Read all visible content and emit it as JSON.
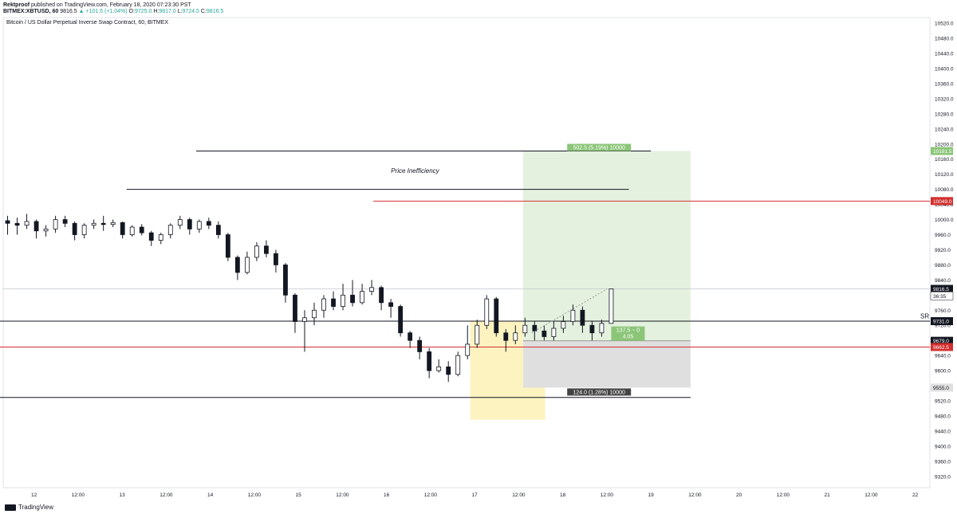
{
  "header": {
    "author": "Rektproof",
    "published": "published on TradingView.com, February 18, 2020 07:23:30 PST",
    "symbol": "BITMEX:XBTUSD, 60",
    "last": "9816.5",
    "change": "▲ +101.5 (+1.04%)",
    "o_label": "O:",
    "o": "9725.0",
    "h_label": "H:",
    "h": "9817.0",
    "l_label": "L:",
    "l": "9724.5",
    "c_label": "C:",
    "c": "9816.5"
  },
  "chart_title": "Bitcoin / US Dollar Perpetual Inverse Swap Contract, 60, BITMEX",
  "footer": {
    "brand": "TradingView"
  },
  "colors": {
    "up": "#131722",
    "down": "#131722",
    "accent_red": "#d32f2f",
    "profit": "#e5f1df",
    "loss": "#dfdfdf",
    "zone": "#fcf3c0",
    "profit_label": "#8bc578",
    "loss_label": "#444444"
  },
  "chart_data": {
    "type": "candlestick",
    "timeframe": "60",
    "ylim": [
      9290,
      10535
    ],
    "yticks": [
      "10520.0",
      "10480.0",
      "10440.0",
      "10400.0",
      "10360.0",
      "10320.0",
      "10280.0",
      "10240.0",
      "10200.0",
      "10160.0",
      "10120.0",
      "10080.0",
      "10040.0",
      "10000.0",
      "9960.0",
      "9920.0",
      "9880.0",
      "9840.0",
      "9800.0",
      "9760.0",
      "9720.0",
      "9680.0",
      "9640.0",
      "9600.0",
      "9560.0",
      "9520.0",
      "9480.0",
      "9440.0",
      "9400.0",
      "9360.0",
      "9320.0"
    ],
    "xticks": [
      "12",
      "12:00",
      "13",
      "12:00",
      "14",
      "12:00",
      "15",
      "12:00",
      "16",
      "12:00",
      "17",
      "12:00",
      "18",
      "12:00",
      "19",
      "12:00",
      "20",
      "12:00",
      "21",
      "12:00",
      "22"
    ],
    "price_labels": [
      {
        "text": "10181.5",
        "value": 10181.5,
        "style": "green"
      },
      {
        "text": "10049.0",
        "value": 10049.0,
        "style": "red"
      },
      {
        "text": "9816.5",
        "value": 9816.5,
        "style": "dark"
      },
      {
        "text": "36:35",
        "value": 9798,
        "style": "light"
      },
      {
        "text": "9731.0",
        "value": 9731.0,
        "style": "dark"
      },
      {
        "text": "9679.0",
        "value": 9679.0,
        "style": "dark"
      },
      {
        "text": "9662.5",
        "value": 9662.5,
        "style": "red"
      },
      {
        "text": "9555.0",
        "value": 9555.0,
        "style": "gray"
      }
    ],
    "annotations": {
      "price_inefficiency": "Price Inefficiency",
      "sr": "SR",
      "target": "502.5 (5.19%) 10000",
      "stop": "124.0 (1.28%) 10000",
      "ratio_line1": "137.5 ~ 0",
      "ratio_line2": "4.05"
    },
    "levels": [
      {
        "value": 10181.5,
        "from": 13.84,
        "to": 19.0,
        "color": "black"
      },
      {
        "value": 10080.0,
        "from": 13.05,
        "to": 18.75,
        "color": "black"
      },
      {
        "value": 10049.0,
        "from": 15.85,
        "to": 22.6,
        "color": "red"
      },
      {
        "value": 9731.0,
        "from": 11.25,
        "to": 22.6,
        "color": "black"
      },
      {
        "value": 9662.5,
        "from": 11.25,
        "to": 22.6,
        "color": "red"
      },
      {
        "value": 9529.0,
        "from": 11.25,
        "to": 19.45,
        "color": "black"
      }
    ],
    "position": {
      "entry": 9679.0,
      "target": 10181.5,
      "stop": 9555.0,
      "from": 17.55,
      "to": 19.45
    },
    "zone": {
      "top": 9731.0,
      "bottom": 9470.0,
      "from": 16.95,
      "to": 17.8
    },
    "candles": [
      [
        9997,
        9990,
        10010,
        9960
      ],
      [
        9990,
        9985,
        10005,
        9960
      ],
      [
        9985,
        9995,
        10015,
        9975
      ],
      [
        9995,
        9970,
        10000,
        9950
      ],
      [
        9970,
        9975,
        9985,
        9955
      ],
      [
        9975,
        10000,
        10010,
        9965
      ],
      [
        10000,
        9990,
        10010,
        9980
      ],
      [
        9990,
        9960,
        9995,
        9945
      ],
      [
        9960,
        9985,
        9990,
        9950
      ],
      [
        9985,
        9990,
        10000,
        9975
      ],
      [
        9990,
        9987,
        10010,
        9970
      ],
      [
        9987,
        9992,
        10000,
        9980
      ],
      [
        9992,
        9960,
        9995,
        9950
      ],
      [
        9960,
        9980,
        9985,
        9955
      ],
      [
        9980,
        9965,
        9988,
        9958
      ],
      [
        9965,
        9945,
        9970,
        9930
      ],
      [
        9945,
        9960,
        9965,
        9935
      ],
      [
        9960,
        9985,
        9990,
        9950
      ],
      [
        9985,
        10000,
        10010,
        9975
      ],
      [
        10000,
        9975,
        10005,
        9960
      ],
      [
        9975,
        9995,
        10000,
        9965
      ],
      [
        9995,
        9985,
        10005,
        9975
      ],
      [
        9985,
        9960,
        9995,
        9950
      ],
      [
        9960,
        9900,
        9965,
        9890
      ],
      [
        9900,
        9860,
        9905,
        9840
      ],
      [
        9860,
        9900,
        9915,
        9855
      ],
      [
        9900,
        9930,
        9940,
        9890
      ],
      [
        9930,
        9910,
        9945,
        9900
      ],
      [
        9910,
        9880,
        9920,
        9860
      ],
      [
        9880,
        9800,
        9885,
        9780
      ],
      [
        9800,
        9730,
        9805,
        9700
      ],
      [
        9730,
        9740,
        9760,
        9650
      ],
      [
        9740,
        9760,
        9780,
        9720
      ],
      [
        9760,
        9790,
        9800,
        9740
      ],
      [
        9790,
        9770,
        9810,
        9760
      ],
      [
        9770,
        9800,
        9830,
        9760
      ],
      [
        9800,
        9780,
        9840,
        9770
      ],
      [
        9780,
        9810,
        9830,
        9775
      ],
      [
        9810,
        9820,
        9840,
        9800
      ],
      [
        9820,
        9780,
        9825,
        9760
      ],
      [
        9780,
        9770,
        9790,
        9740
      ],
      [
        9770,
        9700,
        9775,
        9690
      ],
      [
        9700,
        9680,
        9705,
        9660
      ],
      [
        9680,
        9650,
        9690,
        9630
      ],
      [
        9650,
        9600,
        9660,
        9580
      ],
      [
        9600,
        9610,
        9630,
        9595
      ],
      [
        9610,
        9590,
        9625,
        9570
      ],
      [
        9590,
        9640,
        9650,
        9585
      ],
      [
        9640,
        9670,
        9720,
        9630
      ],
      [
        9670,
        9720,
        9735,
        9660
      ],
      [
        9720,
        9790,
        9800,
        9710
      ],
      [
        9790,
        9700,
        9795,
        9690
      ],
      [
        9700,
        9680,
        9710,
        9650
      ],
      [
        9680,
        9700,
        9720,
        9670
      ],
      [
        9700,
        9720,
        9740,
        9690
      ],
      [
        9720,
        9705,
        9730,
        9680
      ],
      [
        9705,
        9690,
        9720,
        9680
      ],
      [
        9690,
        9712,
        9730,
        9680
      ],
      [
        9712,
        9730,
        9745,
        9700
      ],
      [
        9730,
        9760,
        9775,
        9720
      ],
      [
        9760,
        9720,
        9770,
        9700
      ],
      [
        9720,
        9700,
        9730,
        9680
      ],
      [
        9700,
        9725,
        9735,
        9690
      ],
      [
        9725,
        9816.5,
        9817,
        9724.5
      ]
    ]
  }
}
